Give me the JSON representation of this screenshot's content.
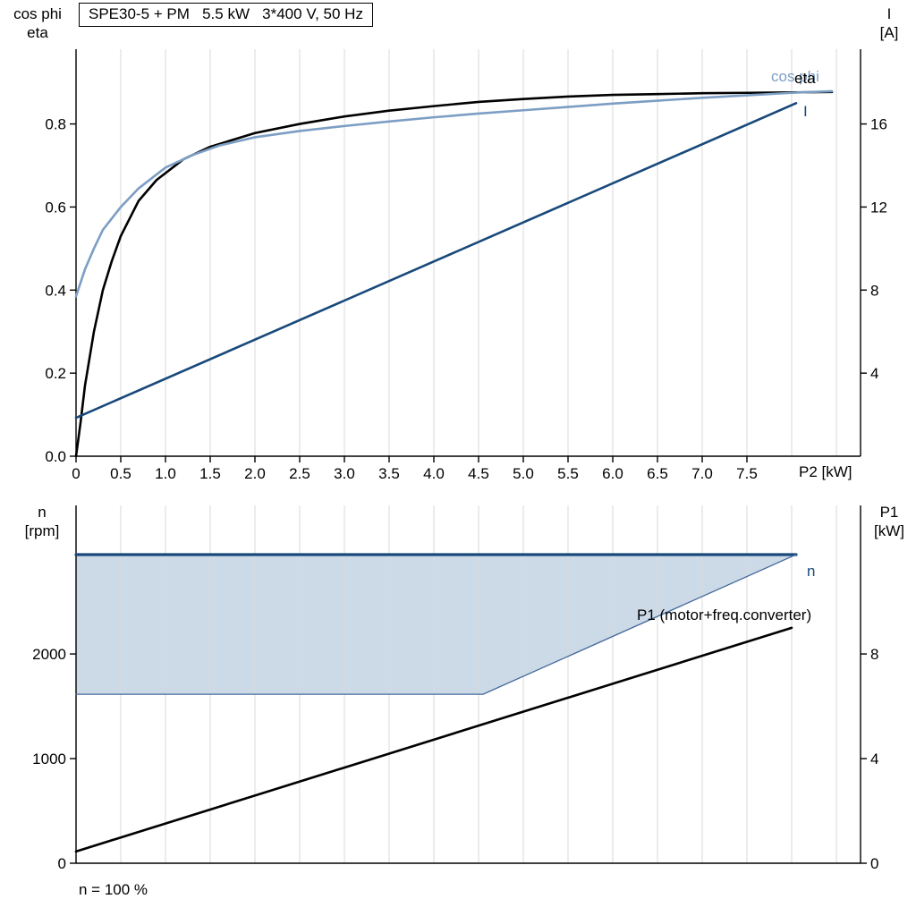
{
  "colors": {
    "black": "#000000",
    "steel_blue": "#7d9ec4",
    "dark_blue": "#18497b",
    "grid": "#d9d9d9",
    "envelope_fill": "#ccd9e7"
  },
  "chart_data": [
    {
      "type": "line",
      "title": "SPE30-5 + PM   5.5 kW   3*400 V, 50 Hz",
      "x_label": "P2 [kW]",
      "y_left_title_lines": [
        "cos phi",
        "eta"
      ],
      "y_right_title_lines": [
        "I",
        "[A]"
      ],
      "xlim": [
        0,
        8.77
      ],
      "y_left_lim": [
        0,
        0.98
      ],
      "y_right_lim": [
        0,
        19.6
      ],
      "grid_x_values": [
        0.5,
        1,
        1.5,
        2,
        2.5,
        3,
        3.5,
        4,
        4.5,
        5,
        5.5,
        6,
        6.5,
        7,
        7.5,
        8,
        8.5
      ],
      "x_tick_values": [
        0,
        0.5,
        1,
        1.5,
        2,
        2.5,
        3,
        3.5,
        4,
        4.5,
        5,
        5.5,
        6,
        6.5,
        7,
        7.5
      ],
      "x_tick_labels": [
        "0",
        "0.5",
        "1.0",
        "1.5",
        "2.0",
        "2.5",
        "3.0",
        "3.5",
        "4.0",
        "4.5",
        "5.0",
        "5.5",
        "6.0",
        "6.5",
        "7.0",
        "7.5"
      ],
      "y_left_tick_values": [
        0,
        0.2,
        0.4,
        0.6,
        0.8
      ],
      "y_left_tick_labels": [
        "0.0",
        "0.2",
        "0.4",
        "0.6",
        "0.8"
      ],
      "y_right_tick_values": [
        4,
        8,
        12,
        16
      ],
      "y_right_tick_labels": [
        "4",
        "8",
        "12",
        "16"
      ],
      "series": [
        {
          "name": "eta",
          "axis": "left",
          "color": "#000000",
          "width": 2.6,
          "x": [
            0,
            0.05,
            0.1,
            0.2,
            0.3,
            0.4,
            0.5,
            0.7,
            0.9,
            1.2,
            1.5,
            2.0,
            2.5,
            3.0,
            3.5,
            4.0,
            4.5,
            5.0,
            5.5,
            6.0,
            6.5,
            7.0,
            7.5,
            8.0,
            8.45
          ],
          "y": [
            0,
            0.08,
            0.17,
            0.3,
            0.4,
            0.47,
            0.53,
            0.615,
            0.665,
            0.715,
            0.745,
            0.778,
            0.8,
            0.818,
            0.832,
            0.843,
            0.853,
            0.86,
            0.866,
            0.87,
            0.872,
            0.874,
            0.875,
            0.876,
            0.877
          ]
        },
        {
          "name": "cos phi",
          "axis": "left",
          "color": "#7d9ec4",
          "width": 2.6,
          "x": [
            0,
            0.1,
            0.2,
            0.3,
            0.5,
            0.7,
            1.0,
            1.3,
            1.6,
            2.0,
            2.5,
            3.0,
            3.5,
            4.0,
            4.5,
            5.0,
            5.5,
            6.0,
            6.5,
            7.0,
            7.5,
            8.0,
            8.45
          ],
          "y": [
            0.385,
            0.45,
            0.5,
            0.545,
            0.6,
            0.645,
            0.695,
            0.725,
            0.748,
            0.768,
            0.783,
            0.795,
            0.806,
            0.816,
            0.825,
            0.833,
            0.841,
            0.849,
            0.856,
            0.863,
            0.869,
            0.875,
            0.879
          ]
        },
        {
          "name": "I",
          "axis": "right",
          "color": "#18497b",
          "width": 2.6,
          "x": [
            0,
            8.05
          ],
          "y": [
            1.85,
            17.0
          ]
        }
      ]
    },
    {
      "type": "line",
      "annotation": "n = 100 %",
      "y_left_title_lines": [
        "n",
        "[rpm]"
      ],
      "y_right_title_lines": [
        "P1",
        "[kW]"
      ],
      "xlim": [
        0,
        8.77
      ],
      "y_left_lim": [
        0,
        3420
      ],
      "y_right_lim": [
        0,
        13.68
      ],
      "grid_x_values": [
        0.5,
        1,
        1.5,
        2,
        2.5,
        3,
        3.5,
        4,
        4.5,
        5,
        5.5,
        6,
        6.5,
        7,
        7.5,
        8,
        8.5
      ],
      "x_tick_values": [],
      "x_tick_labels": [],
      "y_left_tick_values": [
        0,
        1000,
        2000
      ],
      "y_left_tick_labels": [
        "0",
        "1000",
        "2000"
      ],
      "y_right_tick_values": [
        0,
        4,
        8
      ],
      "y_right_tick_labels": [
        "0",
        "4",
        "8"
      ],
      "envelope": {
        "fill": "#ccd9e7",
        "x": [
          0,
          4.55,
          8.05,
          0
        ],
        "y": [
          1615,
          1615,
          2950,
          2950
        ]
      },
      "series": [
        {
          "name": "n",
          "axis": "left",
          "color": "#18497b",
          "width": 3.2,
          "x": [
            0,
            8.05
          ],
          "y": [
            2950,
            2950
          ]
        },
        {
          "name": "operating-range-boundary",
          "axis": "left",
          "color": "#44699b",
          "width": 1.3,
          "x": [
            0,
            4.55,
            8.05
          ],
          "y": [
            1615,
            1615,
            2950
          ]
        },
        {
          "name": "P1 (motor+freq.converter)",
          "axis": "right",
          "color": "#000000",
          "width": 2.6,
          "x": [
            0,
            8.0
          ],
          "y": [
            0.45,
            9.0
          ]
        }
      ]
    }
  ]
}
